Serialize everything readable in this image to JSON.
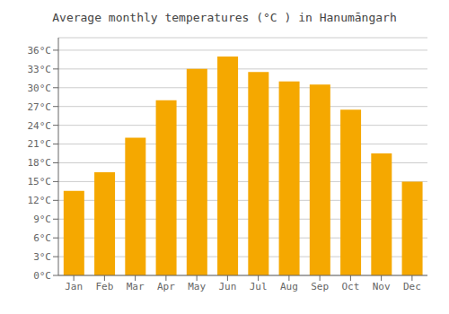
{
  "chart_data": {
    "type": "bar",
    "title": "Average monthly temperatures (°C ) in Hanumāngarh",
    "categories": [
      "Jan",
      "Feb",
      "Mar",
      "Apr",
      "May",
      "Jun",
      "Jul",
      "Aug",
      "Sep",
      "Oct",
      "Nov",
      "Dec"
    ],
    "values": [
      13.5,
      16.5,
      22.0,
      28.0,
      33.0,
      35.0,
      32.5,
      31.0,
      30.5,
      26.5,
      19.5,
      15.0
    ],
    "color": "#F5A800",
    "ylim": [
      0,
      38
    ],
    "yticks": [
      {
        "value": 0,
        "label": "0°C"
      },
      {
        "value": 3,
        "label": "3°C"
      },
      {
        "value": 6,
        "label": "6°C"
      },
      {
        "value": 9,
        "label": "9°C"
      },
      {
        "value": 12,
        "label": "12°C"
      },
      {
        "value": 15,
        "label": "15°C"
      },
      {
        "value": 18,
        "label": "18°C"
      },
      {
        "value": 21,
        "label": "21°C"
      },
      {
        "value": 24,
        "label": "24°C"
      },
      {
        "value": 27,
        "label": "27°C"
      },
      {
        "value": 30,
        "label": "30°C"
      },
      {
        "value": 33,
        "label": "33°C"
      },
      {
        "value": 36,
        "label": "36°C"
      }
    ],
    "grid": true
  }
}
